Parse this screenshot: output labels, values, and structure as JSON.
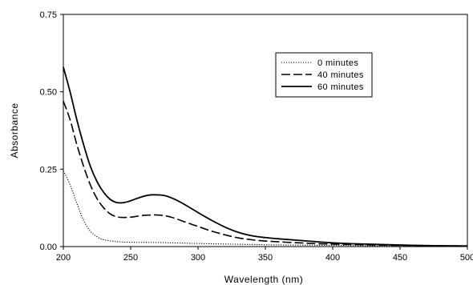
{
  "chart_data": {
    "type": "line",
    "title": "",
    "xlabel": "Wavelength (nm)",
    "ylabel": "Absorbance",
    "xlim": [
      200,
      500
    ],
    "ylim": [
      0,
      0.75
    ],
    "x_ticks": [
      200,
      250,
      300,
      350,
      400,
      450,
      500
    ],
    "x_tick_labels": [
      "200",
      "250",
      "300",
      "350",
      "400",
      "450",
      "500"
    ],
    "y_ticks": [
      0,
      0.25,
      0.5,
      0.75
    ],
    "y_tick_labels": [
      "0.00",
      "0.25",
      "0.50",
      "0.75"
    ],
    "grid": false,
    "legend_position": "top-right",
    "series": [
      {
        "name": "0 minutes",
        "style": "dotted",
        "x": [
          200,
          205,
          210,
          215,
          220,
          225,
          230,
          240,
          250,
          270,
          300,
          350,
          400,
          450,
          500
        ],
        "y": [
          0.245,
          0.2,
          0.14,
          0.085,
          0.05,
          0.032,
          0.022,
          0.016,
          0.014,
          0.013,
          0.01,
          0.006,
          0.004,
          0.002,
          0.001
        ]
      },
      {
        "name": "40 minutes",
        "style": "dashed",
        "x": [
          200,
          205,
          210,
          215,
          220,
          225,
          230,
          235,
          240,
          245,
          250,
          255,
          260,
          265,
          270,
          275,
          280,
          285,
          290,
          300,
          310,
          320,
          330,
          340,
          350,
          375,
          400,
          450,
          500
        ],
        "y": [
          0.47,
          0.41,
          0.33,
          0.26,
          0.2,
          0.155,
          0.125,
          0.105,
          0.096,
          0.094,
          0.095,
          0.098,
          0.101,
          0.102,
          0.102,
          0.1,
          0.095,
          0.088,
          0.08,
          0.065,
          0.05,
          0.038,
          0.028,
          0.022,
          0.018,
          0.012,
          0.008,
          0.004,
          0.002
        ]
      },
      {
        "name": "60 minutes",
        "style": "solid",
        "x": [
          200,
          205,
          210,
          215,
          220,
          225,
          230,
          235,
          240,
          245,
          250,
          255,
          260,
          265,
          270,
          275,
          280,
          285,
          290,
          300,
          310,
          320,
          330,
          340,
          350,
          360,
          375,
          400,
          425,
          450,
          475,
          500
        ],
        "y": [
          0.58,
          0.5,
          0.41,
          0.33,
          0.26,
          0.21,
          0.175,
          0.152,
          0.142,
          0.142,
          0.148,
          0.156,
          0.163,
          0.167,
          0.167,
          0.165,
          0.158,
          0.148,
          0.136,
          0.11,
          0.085,
          0.063,
          0.046,
          0.035,
          0.029,
          0.025,
          0.02,
          0.012,
          0.008,
          0.005,
          0.003,
          0.002
        ]
      }
    ]
  }
}
